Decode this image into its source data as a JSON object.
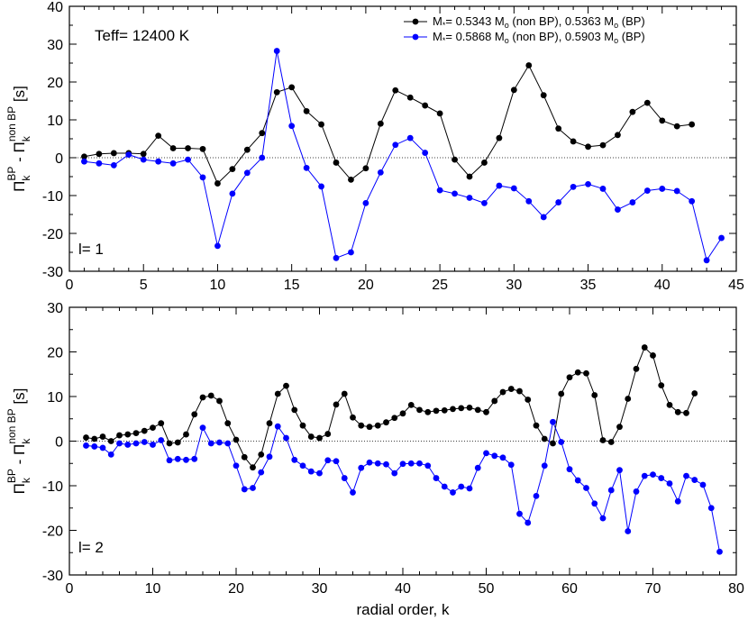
{
  "chart_data": [
    {
      "type": "line",
      "annotations": [
        "Teff= 12400 K",
        "l= 1"
      ],
      "xlabel": "",
      "ylabel": "Π_k^BP - Π_k^non BP [s]",
      "xlim": [
        0,
        45
      ],
      "ylim": [
        -30,
        40
      ],
      "xticks": [
        0,
        5,
        10,
        15,
        20,
        25,
        30,
        35,
        40,
        45
      ],
      "yticks": [
        -30,
        -20,
        -10,
        0,
        10,
        20,
        30,
        40
      ],
      "zero_line": true,
      "legend_position": "top-right",
      "series": [
        {
          "name": "M*= 0.5343 Mo (non BP), 0.5363 Mo (BP)",
          "color": "#000000",
          "x": [
            1,
            2,
            3,
            4,
            5,
            6,
            7,
            8,
            9,
            10,
            11,
            12,
            13,
            14,
            15,
            16,
            17,
            18,
            19,
            20,
            21,
            22,
            23,
            24,
            25,
            26,
            27,
            28,
            29,
            30,
            31,
            32,
            33,
            34,
            35,
            36,
            37,
            38,
            39,
            40,
            41,
            42
          ],
          "y": [
            0.3,
            1,
            1.2,
            1.2,
            1,
            5.8,
            2.5,
            2.5,
            2.3,
            -6.8,
            -3,
            2.1,
            6.5,
            17.3,
            18.6,
            12.3,
            8.8,
            -1.3,
            -5.8,
            -2.8,
            9,
            17.8,
            15.9,
            13.8,
            11.7,
            -0.5,
            -5,
            -1.3,
            5.2,
            17.9,
            24.4,
            16.5,
            7.7,
            4.3,
            2.9,
            3.3,
            6,
            12.1,
            14.5,
            9.8,
            8.3,
            8.8
          ]
        },
        {
          "name": "M*= 0.5868 Mo (non BP), 0.5903 Mo (BP)",
          "color": "#0000ff",
          "x": [
            1,
            2,
            3,
            4,
            5,
            6,
            7,
            8,
            9,
            10,
            11,
            12,
            13,
            14,
            15,
            16,
            17,
            18,
            19,
            20,
            21,
            22,
            23,
            24,
            25,
            26,
            27,
            28,
            29,
            30,
            31,
            32,
            33,
            34,
            35,
            36,
            37,
            38,
            39,
            40,
            41,
            42,
            43,
            44
          ],
          "y": [
            -1,
            -1.5,
            -2,
            0.8,
            -0.5,
            -1,
            -1.5,
            -0.5,
            -5.2,
            -23.3,
            -9.5,
            -4,
            0,
            28.2,
            8.4,
            -2.7,
            -7.6,
            -26.5,
            -25,
            -12,
            -3.9,
            3.4,
            5.2,
            1.3,
            -8.6,
            -9.5,
            -10.6,
            -12,
            -7.4,
            -8.1,
            -11.5,
            -15.7,
            -11.8,
            -7.7,
            -7,
            -8.2,
            -13.7,
            -11.8,
            -8.7,
            -8.2,
            -8.8,
            -11.5,
            -27.1,
            -21.2
          ]
        }
      ]
    },
    {
      "type": "line",
      "annotations": [
        "l= 2"
      ],
      "xlabel": "radial order, k",
      "ylabel": "Π_k^BP - Π_k^non BP [s]",
      "xlim": [
        0,
        80
      ],
      "ylim": [
        -30,
        30
      ],
      "xticks": [
        0,
        10,
        20,
        30,
        40,
        50,
        60,
        70,
        80
      ],
      "yticks": [
        -30,
        -20,
        -10,
        0,
        10,
        20,
        30
      ],
      "zero_line": true,
      "series": [
        {
          "name": "",
          "color": "#000000",
          "x": [
            2,
            3,
            4,
            5,
            6,
            7,
            8,
            9,
            10,
            11,
            12,
            13,
            14,
            15,
            16,
            17,
            18,
            19,
            20,
            21,
            22,
            23,
            24,
            25,
            26,
            27,
            28,
            29,
            30,
            31,
            32,
            33,
            34,
            35,
            36,
            37,
            38,
            39,
            40,
            41,
            42,
            43,
            44,
            45,
            46,
            47,
            48,
            49,
            50,
            51,
            52,
            53,
            54,
            55,
            56,
            57,
            58,
            59,
            60,
            61,
            62,
            63,
            64,
            65,
            66,
            67,
            68,
            69,
            70,
            71,
            72,
            73,
            74,
            75
          ],
          "y": [
            0.8,
            0.5,
            1,
            0,
            1.3,
            1.5,
            1.8,
            2.3,
            3,
            4,
            -0.5,
            -0.3,
            1.5,
            6,
            9.8,
            10.2,
            9,
            4,
            0.3,
            -3.6,
            -5.9,
            -3,
            4,
            10.6,
            12.4,
            7,
            3.5,
            1,
            0.7,
            1.6,
            8.2,
            10.6,
            5.3,
            3.5,
            3.2,
            3.5,
            4.2,
            5.2,
            6.2,
            8.1,
            7,
            6.5,
            6.8,
            6.9,
            7.2,
            7.4,
            7.5,
            7,
            6.5,
            9,
            11,
            11.7,
            11.2,
            9.3,
            3.5,
            0.5,
            -0.5,
            10.6,
            14.3,
            15.4,
            15.2,
            10.3,
            0.2,
            -0.2,
            3.2,
            9.5,
            16.2,
            21,
            19.2,
            12.5,
            8.1,
            6.5,
            6.3,
            10.7
          ]
        },
        {
          "name": "",
          "color": "#0000ff",
          "x": [
            2,
            3,
            4,
            5,
            6,
            7,
            8,
            9,
            10,
            11,
            12,
            13,
            14,
            15,
            16,
            17,
            18,
            19,
            20,
            21,
            22,
            23,
            24,
            25,
            26,
            27,
            28,
            29,
            30,
            31,
            32,
            33,
            34,
            35,
            36,
            37,
            38,
            39,
            40,
            41,
            42,
            43,
            44,
            45,
            46,
            47,
            48,
            49,
            50,
            51,
            52,
            53,
            54,
            55,
            56,
            57,
            58,
            59,
            60,
            61,
            62,
            63,
            64,
            65,
            66,
            67,
            68,
            69,
            70,
            71,
            72,
            73,
            74,
            75,
            76,
            77,
            78
          ],
          "y": [
            -1,
            -1.2,
            -1.5,
            -3,
            -0.5,
            -0.8,
            -0.5,
            -0.2,
            -0.8,
            0.2,
            -4.3,
            -4,
            -4.2,
            -4,
            3,
            -0.5,
            -0.3,
            -0.5,
            -5.5,
            -10.8,
            -10.5,
            -7,
            -3.5,
            3.3,
            0.7,
            -4.2,
            -5.5,
            -6.8,
            -7.2,
            -4.3,
            -4.5,
            -8.3,
            -11.5,
            -6,
            -4.8,
            -5,
            -5.2,
            -7.2,
            -5.1,
            -5,
            -5,
            -5.5,
            -8.3,
            -10.2,
            -11.5,
            -10.2,
            -10.6,
            -6,
            -2.7,
            -3.3,
            -3.7,
            -5.3,
            -16.3,
            -18.3,
            -12.3,
            -5.5,
            4.3,
            -0.2,
            -6.3,
            -8.8,
            -10.5,
            -14,
            -17.3,
            -11,
            -6.5,
            -20.2,
            -11.3,
            -7.8,
            -7.5,
            -8.3,
            -9.5,
            -13.5,
            -7.8,
            -8.7,
            -9.8,
            -15,
            -24.8
          ]
        }
      ]
    }
  ]
}
